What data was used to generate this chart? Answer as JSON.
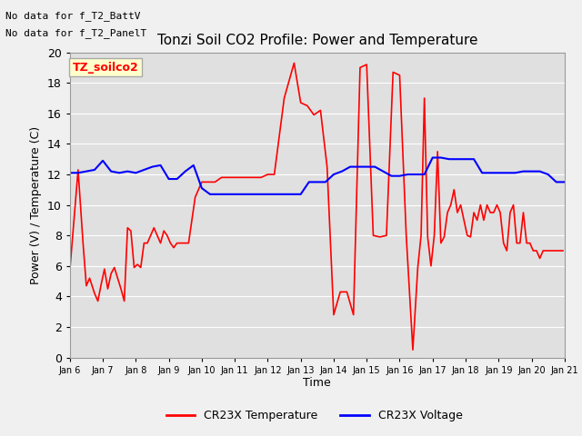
{
  "title": "Tonzi Soil CO2 Profile: Power and Temperature",
  "xlabel": "Time",
  "ylabel": "Power (V) / Temperature (C)",
  "ylim": [
    0,
    20
  ],
  "x_tick_labels": [
    "Jan 6",
    "Jan 7",
    "Jan 8",
    "Jan 9",
    "Jan 10",
    "Jan 11",
    "Jan 12",
    "Jan 13",
    "Jan 14",
    "Jan 15",
    "Jan 16",
    "Jan 17",
    "Jan 18",
    "Jan 19",
    "Jan 20",
    "Jan 21"
  ],
  "top_left_text_1": "No data for f_T2_BattV",
  "top_left_text_2": "No data for f_T2_PanelT",
  "legend_label_box": "TZ_soilco2",
  "legend_entries": [
    "CR23X Temperature",
    "CR23X Voltage"
  ],
  "fig_facecolor": "#f0f0f0",
  "plot_facecolor": "#e0e0e0",
  "grid_color": "#ffffff",
  "red_x": [
    0,
    0.25,
    0.4,
    0.5,
    0.6,
    0.75,
    0.85,
    0.95,
    1.05,
    1.15,
    1.25,
    1.35,
    1.55,
    1.65,
    1.75,
    1.85,
    1.95,
    2.05,
    2.15,
    2.25,
    2.35,
    2.55,
    2.65,
    2.75,
    2.85,
    2.95,
    3.05,
    3.15,
    3.25,
    3.35,
    3.45,
    3.6,
    3.8,
    4.0,
    4.2,
    4.4,
    4.6,
    4.8,
    5.0,
    5.2,
    5.4,
    5.6,
    5.8,
    6.0,
    6.2,
    6.5,
    6.8,
    7.0,
    7.2,
    7.4,
    7.6,
    7.8,
    8.0,
    8.2,
    8.4,
    8.6,
    8.8,
    9.0,
    9.2,
    9.4,
    9.6,
    9.8,
    10.0,
    10.2,
    10.4,
    10.55,
    10.65,
    10.75,
    10.85,
    10.95,
    11.05,
    11.15,
    11.25,
    11.35,
    11.45,
    11.55,
    11.65,
    11.75,
    11.85,
    11.95,
    12.05,
    12.15,
    12.25,
    12.35,
    12.45,
    12.55,
    12.65,
    12.75,
    12.85,
    12.95,
    13.05,
    13.15,
    13.25,
    13.35,
    13.45,
    13.55,
    13.65,
    13.75,
    13.85,
    13.95,
    14.05,
    14.15,
    14.25,
    14.35,
    14.45,
    14.55,
    14.65,
    14.75,
    14.85,
    14.95
  ],
  "red_y": [
    5.7,
    12.3,
    7.5,
    4.7,
    5.2,
    4.2,
    3.7,
    4.8,
    5.8,
    4.5,
    5.5,
    5.9,
    4.5,
    3.7,
    8.5,
    8.3,
    5.9,
    6.1,
    5.9,
    7.5,
    7.5,
    8.5,
    8.0,
    7.5,
    8.3,
    8.0,
    7.5,
    7.2,
    7.5,
    7.5,
    7.5,
    7.5,
    10.5,
    11.5,
    11.5,
    11.5,
    11.8,
    11.8,
    11.8,
    11.8,
    11.8,
    11.8,
    11.8,
    12.0,
    12.0,
    17.0,
    19.3,
    16.7,
    16.5,
    15.9,
    16.2,
    12.5,
    2.8,
    4.3,
    4.3,
    2.8,
    19.0,
    19.2,
    8.0,
    7.9,
    8.0,
    18.7,
    18.5,
    8.0,
    0.5,
    5.9,
    8.0,
    17.0,
    7.9,
    6.0,
    8.0,
    13.5,
    7.5,
    7.9,
    9.5,
    10.0,
    11.0,
    9.5,
    10.0,
    9.0,
    8.0,
    7.9,
    9.5,
    9.0,
    10.0,
    9.0,
    10.0,
    9.5,
    9.5,
    10.0,
    9.5,
    7.5,
    7.0,
    9.5,
    10.0,
    7.5,
    7.5,
    9.5,
    7.5,
    7.5,
    7.0,
    7.0,
    6.5,
    7.0,
    7.0,
    7.0,
    7.0,
    7.0,
    7.0,
    7.0
  ],
  "blue_x": [
    0,
    0.25,
    0.5,
    0.75,
    1.0,
    1.25,
    1.5,
    1.75,
    2.0,
    2.25,
    2.5,
    2.75,
    3.0,
    3.25,
    3.5,
    3.75,
    4.0,
    4.25,
    4.5,
    4.75,
    5.0,
    5.25,
    5.5,
    5.75,
    6.0,
    6.25,
    6.5,
    6.75,
    7.0,
    7.25,
    7.5,
    7.75,
    8.0,
    8.25,
    8.5,
    8.75,
    9.0,
    9.25,
    9.5,
    9.75,
    10.0,
    10.25,
    10.5,
    10.75,
    11.0,
    11.25,
    11.5,
    11.75,
    12.0,
    12.25,
    12.5,
    12.75,
    13.0,
    13.25,
    13.5,
    13.75,
    14.0,
    14.25,
    14.5,
    14.75,
    15.0
  ],
  "blue_y": [
    12.1,
    12.1,
    12.2,
    12.3,
    12.9,
    12.2,
    12.1,
    12.2,
    12.1,
    12.3,
    12.5,
    12.6,
    11.7,
    11.7,
    12.2,
    12.6,
    11.1,
    10.7,
    10.7,
    10.7,
    10.7,
    10.7,
    10.7,
    10.7,
    10.7,
    10.7,
    10.7,
    10.7,
    10.7,
    11.5,
    11.5,
    11.5,
    12.0,
    12.2,
    12.5,
    12.5,
    12.5,
    12.5,
    12.2,
    11.9,
    11.9,
    12.0,
    12.0,
    12.0,
    13.1,
    13.1,
    13.0,
    13.0,
    13.0,
    13.0,
    12.1,
    12.1,
    12.1,
    12.1,
    12.1,
    12.2,
    12.2,
    12.2,
    12.0,
    11.5,
    11.5
  ]
}
